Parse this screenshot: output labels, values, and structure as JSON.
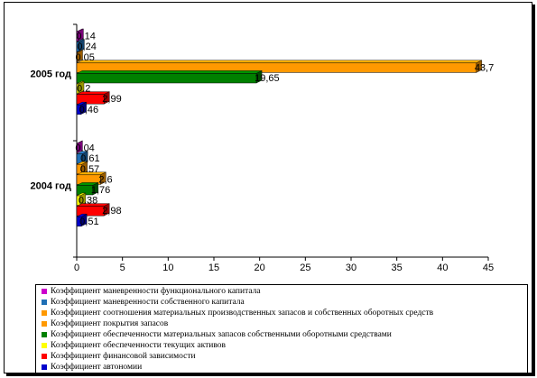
{
  "chart_data": {
    "type": "bar",
    "orientation": "horizontal",
    "style": "3d",
    "categories": [
      "2005 год",
      "2004 год"
    ],
    "series": [
      {
        "name": "Коэффициент маневренности функционального капитала",
        "color": "#cc00cc",
        "values": [
          0.14,
          0.04
        ],
        "labels": [
          "0,14",
          "0,04"
        ]
      },
      {
        "name": "Коэффициент маневренности собственного капитала",
        "color": "#1f6fb5",
        "values": [
          0.24,
          0.61
        ],
        "labels": [
          "0,24",
          "0,61"
        ]
      },
      {
        "name": "Коэффициент соотношения материальных производственных запасов и собственных оборотных средств",
        "color": "#ff9900",
        "values": [
          0.05,
          0.57
        ],
        "labels": [
          "0,05",
          "0,57"
        ]
      },
      {
        "name": "Коэффициент покрытия запасов",
        "color": "#ff9900",
        "values": [
          43.7,
          2.6
        ],
        "labels": [
          "43,7",
          "2,6"
        ]
      },
      {
        "name": "Коэффициент обеспеченности материальных запасов собственными оборотными средствами",
        "color": "#008000",
        "values": [
          19.65,
          1.76
        ],
        "labels": [
          "19,65",
          "1,76"
        ]
      },
      {
        "name": "Коэффициент обеспеченности текущих активов",
        "color": "#ffff00",
        "values": [
          0.2,
          0.38
        ],
        "labels": [
          "0,2",
          "0,38"
        ]
      },
      {
        "name": "Коэффициент финансовой зависимости",
        "color": "#ff0000",
        "values": [
          2.99,
          2.98
        ],
        "labels": [
          "2,99",
          "2,98"
        ]
      },
      {
        "name": "Коэффициент автономии",
        "color": "#0000cc",
        "values": [
          0.46,
          0.51
        ],
        "labels": [
          "0,46",
          "0,51"
        ]
      }
    ],
    "xlim": [
      0,
      45
    ],
    "xticks": [
      "0",
      "5",
      "10",
      "15",
      "20",
      "25",
      "30",
      "35",
      "40",
      "45"
    ],
    "legend_position": "bottom",
    "grid": false
  }
}
